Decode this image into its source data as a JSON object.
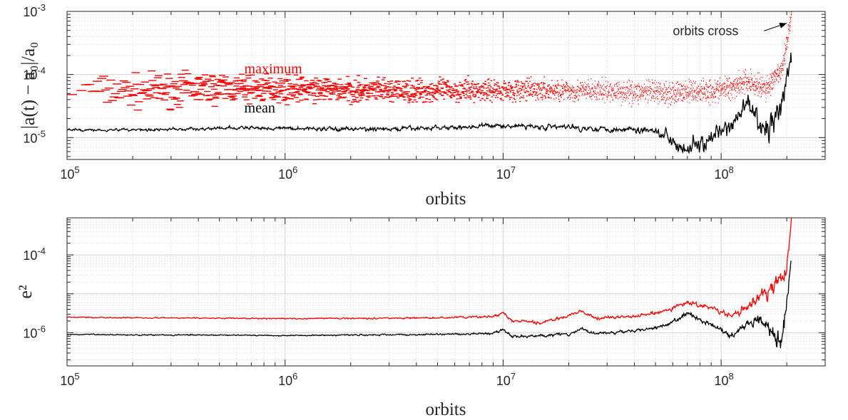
{
  "colors": {
    "maximum": "#ff0000",
    "mean": "#000000",
    "grid": "#dcdcdc",
    "axis": "#262626"
  },
  "chart_data": [
    {
      "type": "line",
      "xscale": "log",
      "yscale": "log",
      "xlim": [
        100000,
        300000000
      ],
      "ylim": [
        4.5e-06,
        0.001
      ],
      "xlabel": "orbits",
      "ylabel": "|a(t) − a₀|/a₀",
      "xticks": [
        100000,
        1000000,
        10000000,
        100000000
      ],
      "xtick_labels": [
        {
          "base": "10",
          "exp": "5"
        },
        {
          "base": "10",
          "exp": "6"
        },
        {
          "base": "10",
          "exp": "7"
        },
        {
          "base": "10",
          "exp": "8"
        }
      ],
      "yticks": [
        1e-05,
        0.0001,
        0.001
      ],
      "ytick_labels": [
        {
          "base": "10",
          "exp": "-5"
        },
        {
          "base": "10",
          "exp": "-4"
        },
        {
          "base": "10",
          "exp": "-3"
        }
      ],
      "grid": true,
      "series": [
        {
          "name": "maximum",
          "color": "#ff0000",
          "style": "dots",
          "points": [
            [
              100000,
              5.8e-05
            ],
            [
              200000,
              5.5e-05
            ],
            [
              400000,
              6.2e-05
            ],
            [
              1000000,
              6e-05
            ],
            [
              3000000,
              5.5e-05
            ],
            [
              10000000,
              5.8e-05
            ],
            [
              30000000,
              5.5e-05
            ],
            [
              60000000,
              5.2e-05
            ],
            [
              100000000,
              5.8e-05
            ],
            [
              130000000,
              8e-05
            ],
            [
              160000000,
              6e-05
            ],
            [
              190000000,
              0.00012
            ],
            [
              210000000,
              0.001
            ]
          ],
          "spread": [
            0.85,
            0.85,
            0.8,
            0.65,
            0.6,
            0.55,
            0.55,
            0.6,
            0.6,
            0.6,
            0.65,
            0.5,
            0.5
          ]
        },
        {
          "name": "mean",
          "color": "#000000",
          "style": "line",
          "points": [
            [
              100000,
              1.32e-05
            ],
            [
              300000,
              1.35e-05
            ],
            [
              700000,
              1.42e-05
            ],
            [
              1000000,
              1.4e-05
            ],
            [
              3000000,
              1.35e-05
            ],
            [
              10000000,
              1.55e-05
            ],
            [
              20000000,
              1.45e-05
            ],
            [
              30000000,
              1.38e-05
            ],
            [
              50000000,
              1.32e-05
            ],
            [
              70000000,
              7e-06
            ],
            [
              90000000,
              9e-06
            ],
            [
              110000000,
              1.4e-05
            ],
            [
              130000000,
              3.5e-05
            ],
            [
              160000000,
              1.2e-05
            ],
            [
              190000000,
              3e-05
            ],
            [
              210000000,
              0.0002
            ]
          ],
          "noise": [
            0.03,
            0.03,
            0.04,
            0.04,
            0.05,
            0.05,
            0.06,
            0.06,
            0.08,
            0.2,
            0.2,
            0.2,
            0.25,
            0.3,
            0.3,
            0.3
          ]
        }
      ],
      "labels": [
        {
          "text": "maximum",
          "color": "#ff0000",
          "x": 650000,
          "y": 0.000105
        },
        {
          "text": "mean",
          "color": "#000000",
          "x": 650000,
          "y": 2.5e-05
        }
      ],
      "annotation": {
        "text": "orbits cross",
        "text_x": 60000000,
        "text_y": 0.00042,
        "arrow_to_x": 200000000,
        "arrow_to_y": 0.00065
      }
    },
    {
      "type": "line",
      "xscale": "log",
      "yscale": "log",
      "xlim": [
        100000,
        300000000
      ],
      "ylim": [
        1.4e-07,
        0.0009
      ],
      "xlabel": "orbits",
      "ylabel": "e²",
      "xticks": [
        100000,
        1000000,
        10000000,
        100000000
      ],
      "xtick_labels": [
        {
          "base": "10",
          "exp": "5"
        },
        {
          "base": "10",
          "exp": "6"
        },
        {
          "base": "10",
          "exp": "7"
        },
        {
          "base": "10",
          "exp": "8"
        }
      ],
      "yticks": [
        1e-06,
        0.0001
      ],
      "ytick_labels": [
        {
          "base": "10",
          "exp": "-6"
        },
        {
          "base": "10",
          "exp": "-4"
        }
      ],
      "grid": true,
      "series": [
        {
          "name": "maximum",
          "color": "#ff0000",
          "style": "line",
          "points": [
            [
              100000,
              2.5e-06
            ],
            [
              1000000,
              2.3e-06
            ],
            [
              5000000,
              2.4e-06
            ],
            [
              9000000,
              2.6e-06
            ],
            [
              10000000,
              3.2e-06
            ],
            [
              11000000,
              2e-06
            ],
            [
              15000000,
              1.8e-06
            ],
            [
              20000000,
              2.8e-06
            ],
            [
              23000000,
              3.5e-06
            ],
            [
              26000000,
              2.4e-06
            ],
            [
              40000000,
              2.6e-06
            ],
            [
              55000000,
              3.5e-06
            ],
            [
              70000000,
              6e-06
            ],
            [
              90000000,
              4.5e-06
            ],
            [
              110000000,
              2.5e-06
            ],
            [
              130000000,
              4.5e-06
            ],
            [
              150000000,
              8e-06
            ],
            [
              180000000,
              1.8e-05
            ],
            [
              200000000,
              4.5e-05
            ],
            [
              210000000,
              0.0008
            ]
          ],
          "noise": [
            0.02,
            0.02,
            0.03,
            0.04,
            0.05,
            0.05,
            0.05,
            0.05,
            0.05,
            0.05,
            0.05,
            0.06,
            0.08,
            0.08,
            0.1,
            0.15,
            0.2,
            0.25,
            0.3,
            0.3
          ]
        },
        {
          "name": "mean",
          "color": "#000000",
          "style": "line",
          "points": [
            [
              100000,
              9e-07
            ],
            [
              1000000,
              8.5e-07
            ],
            [
              5000000,
              9e-07
            ],
            [
              9000000,
              9.5e-07
            ],
            [
              10000000,
              1.2e-06
            ],
            [
              11000000,
              8e-07
            ],
            [
              20000000,
              9e-07
            ],
            [
              23000000,
              1.3e-06
            ],
            [
              26000000,
              9.5e-07
            ],
            [
              40000000,
              1.1e-06
            ],
            [
              55000000,
              1.5e-06
            ],
            [
              70000000,
              3e-06
            ],
            [
              90000000,
              1.7e-06
            ],
            [
              110000000,
              8.5e-07
            ],
            [
              130000000,
              1.6e-06
            ],
            [
              150000000,
              2.5e-06
            ],
            [
              175000000,
              1.2e-06
            ],
            [
              185000000,
              4e-07
            ],
            [
              200000000,
              6e-06
            ],
            [
              210000000,
              0.0001
            ]
          ],
          "noise": [
            0.02,
            0.02,
            0.03,
            0.04,
            0.05,
            0.05,
            0.05,
            0.05,
            0.05,
            0.05,
            0.06,
            0.08,
            0.08,
            0.1,
            0.12,
            0.2,
            0.3,
            0.35,
            0.35,
            0.35
          ]
        }
      ]
    }
  ]
}
